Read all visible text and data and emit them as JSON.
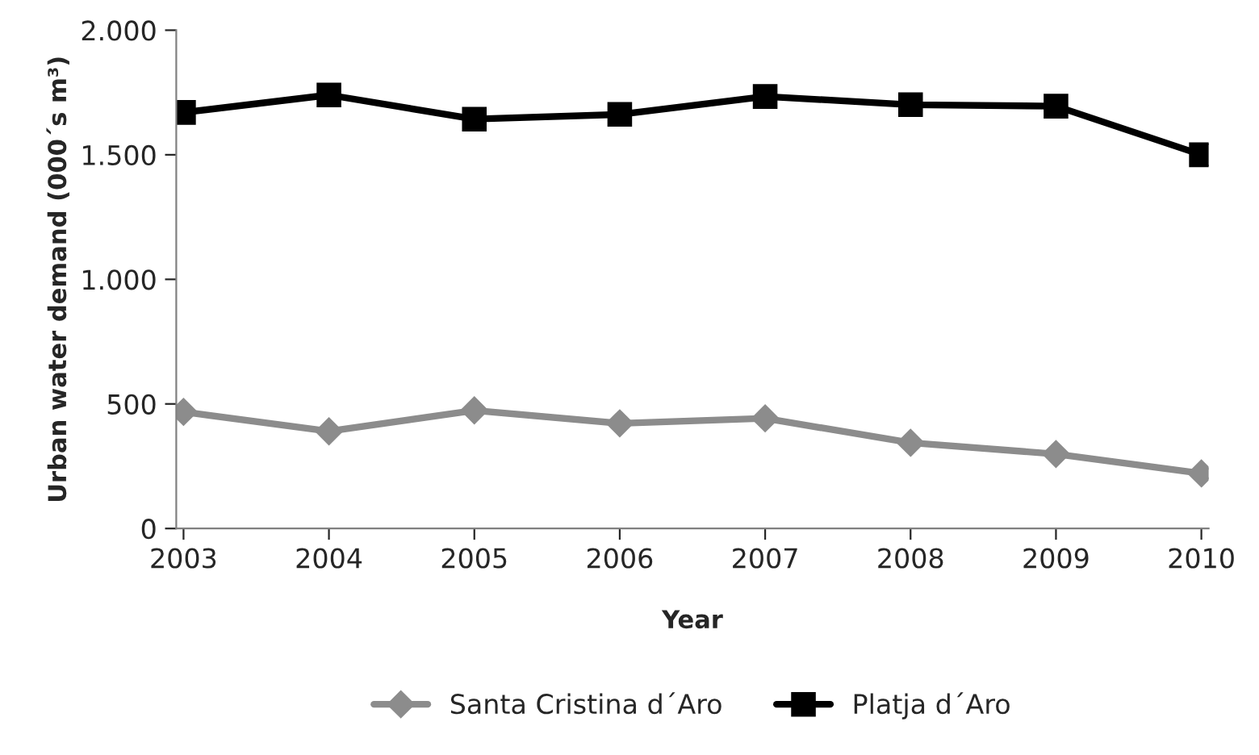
{
  "chart_data": {
    "type": "line",
    "xlabel": "Year",
    "ylabel": "Urban water demand (000´s m³)",
    "categories": [
      "2003",
      "2004",
      "2005",
      "2006",
      "2007",
      "2008",
      "2009",
      "2010"
    ],
    "series": [
      {
        "name": "Santa Cristina d´Aro",
        "color": "#8c8c8c",
        "marker": "diamond",
        "values": [
          468,
          390,
          474,
          422,
          442,
          344,
          299,
          221
        ]
      },
      {
        "name": "Platja d´Aro",
        "color": "#000000",
        "marker": "square",
        "values": [
          1670,
          1740,
          1643,
          1662,
          1734,
          1701,
          1695,
          1500
        ]
      }
    ],
    "ylim": [
      0,
      2000
    ],
    "yticks": [
      0,
      {
        "value": 500,
        "label": "500"
      },
      {
        "value": 1000,
        "label": "1.000"
      },
      {
        "value": 1500,
        "label": "1.500"
      },
      {
        "value": 2000,
        "label": "2.000"
      }
    ],
    "grid": false,
    "legend": "bottom",
    "line_style": "solid"
  }
}
